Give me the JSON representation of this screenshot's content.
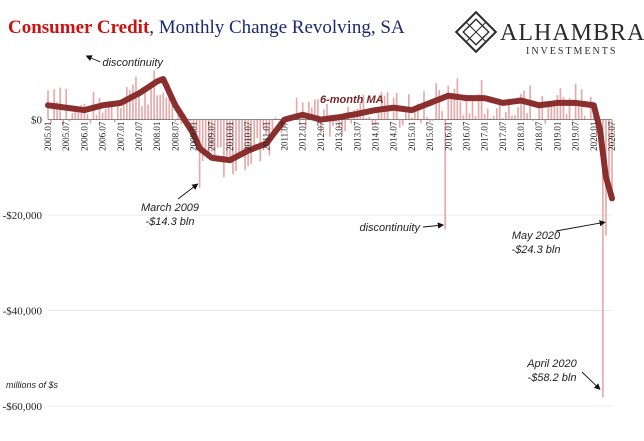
{
  "chart_data": {
    "type": "bar",
    "title": {
      "part1": "Consumer Credit",
      "part2": ", Monthly Change Revolving, SA"
    },
    "units_label": "millions of $s",
    "ylim": [
      -60000,
      15000
    ],
    "y_ticks": [
      {
        "value": 0,
        "label": "$0"
      },
      {
        "value": -20000,
        "label": "-$20,000"
      },
      {
        "value": -40000,
        "label": "-$40,000"
      },
      {
        "value": -60000,
        "label": "-$60,000"
      }
    ],
    "x_range": [
      "2005-01",
      "2020-07"
    ],
    "x_tick_labels": [
      "2005.01",
      "2005.07",
      "2006.01",
      "2006.07",
      "2007.01",
      "2007.07",
      "2008.01",
      "2008.07",
      "2009.01",
      "2009.07",
      "2010.01",
      "2010.07",
      "2011.01",
      "2011.07",
      "2012.01",
      "2012.07",
      "2013.01",
      "2013.07",
      "2014.01",
      "2014.07",
      "2015.01",
      "2015.07",
      "2016.01",
      "2016.07",
      "2017.01",
      "2017.07",
      "2018.01",
      "2018.07",
      "2019.01",
      "2019.07",
      "2020.01",
      "2020.07"
    ],
    "bars_series": "monthly change",
    "ma_label": "6-month MA",
    "ma_series": {
      "months": [
        "2005-01",
        "2005-07",
        "2006-01",
        "2006-07",
        "2007-01",
        "2007-07",
        "2008-01",
        "2008-03",
        "2008-07",
        "2009-01",
        "2009-03",
        "2009-07",
        "2010-01",
        "2010-07",
        "2011-01",
        "2011-07",
        "2012-01",
        "2012-07",
        "2013-01",
        "2013-07",
        "2014-01",
        "2014-07",
        "2015-01",
        "2015-07",
        "2016-01",
        "2016-07",
        "2017-01",
        "2017-07",
        "2018-01",
        "2018-07",
        "2019-01",
        "2019-07",
        "2020-01",
        "2020-03",
        "2020-05",
        "2020-07"
      ],
      "values": [
        3000,
        2500,
        2000,
        3000,
        3500,
        5500,
        8000,
        8500,
        3000,
        -3000,
        -6000,
        -8000,
        -8500,
        -6500,
        -5000,
        0,
        1000,
        0,
        500,
        1200,
        2000,
        2500,
        2000,
        3500,
        5000,
        4500,
        4500,
        3500,
        4000,
        3000,
        3500,
        3500,
        3000,
        -2000,
        -12000,
        -16500
      ]
    },
    "annotations": [
      {
        "text": "discontinuity",
        "month": "2006-01"
      },
      {
        "text": "March 2009",
        "value_text": "-$14.3 bln",
        "month": "2009-03",
        "value": -14300
      },
      {
        "text": "discontinuity",
        "month": "2015-12",
        "value": -23000
      },
      {
        "text": "May 2020",
        "value_text": "-$24.3 bln",
        "month": "2020-05",
        "value": -24300
      },
      {
        "text": "April 2020",
        "value_text": "-$58.2 bln",
        "month": "2020-04",
        "value": -58200
      }
    ],
    "bar_color": "#e8a9a9",
    "ma_color": "#8b2e2e"
  },
  "logo": {
    "name": "ALHAMBRA",
    "sub": "INVESTMENTS"
  }
}
